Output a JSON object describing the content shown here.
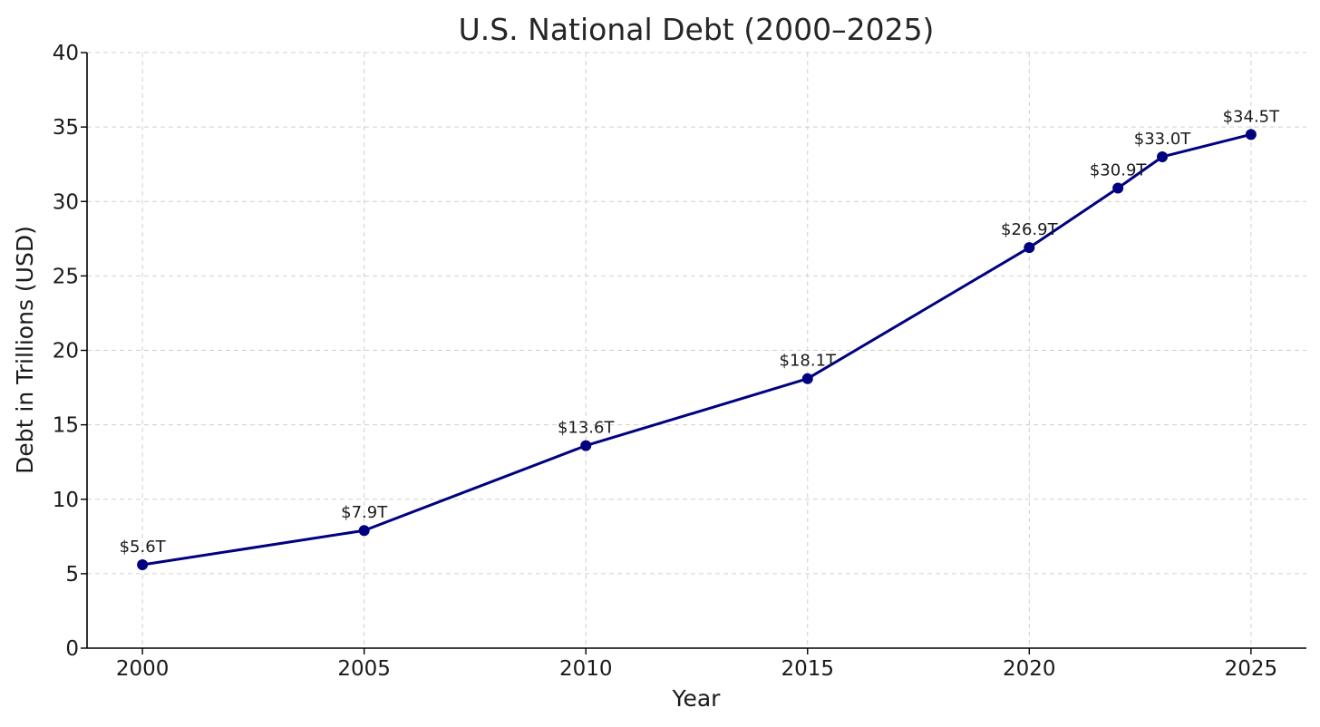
{
  "chart_data": {
    "type": "line",
    "title": "U.S. National Debt (2000–2025)",
    "xlabel": "Year",
    "ylabel": "Debt in Trillions (USD)",
    "xlim": [
      1998.75,
      2026.25
    ],
    "ylim": [
      0,
      40
    ],
    "xticks": [
      2000,
      2005,
      2010,
      2015,
      2020,
      2025
    ],
    "yticks": [
      0,
      5,
      10,
      15,
      20,
      25,
      30,
      35,
      40
    ],
    "grid": true,
    "line_color": "#000080",
    "series": [
      {
        "x": [
          2000,
          2005,
          2010,
          2015,
          2020,
          2022,
          2023,
          2025
        ],
        "y": [
          5.6,
          7.9,
          13.6,
          18.1,
          26.9,
          30.9,
          33.0,
          34.5
        ],
        "labels": [
          "$5.6T",
          "$7.9T",
          "$13.6T",
          "$18.1T",
          "$26.9T",
          "$30.9T",
          "$33.0T",
          "$34.5T"
        ]
      }
    ]
  }
}
